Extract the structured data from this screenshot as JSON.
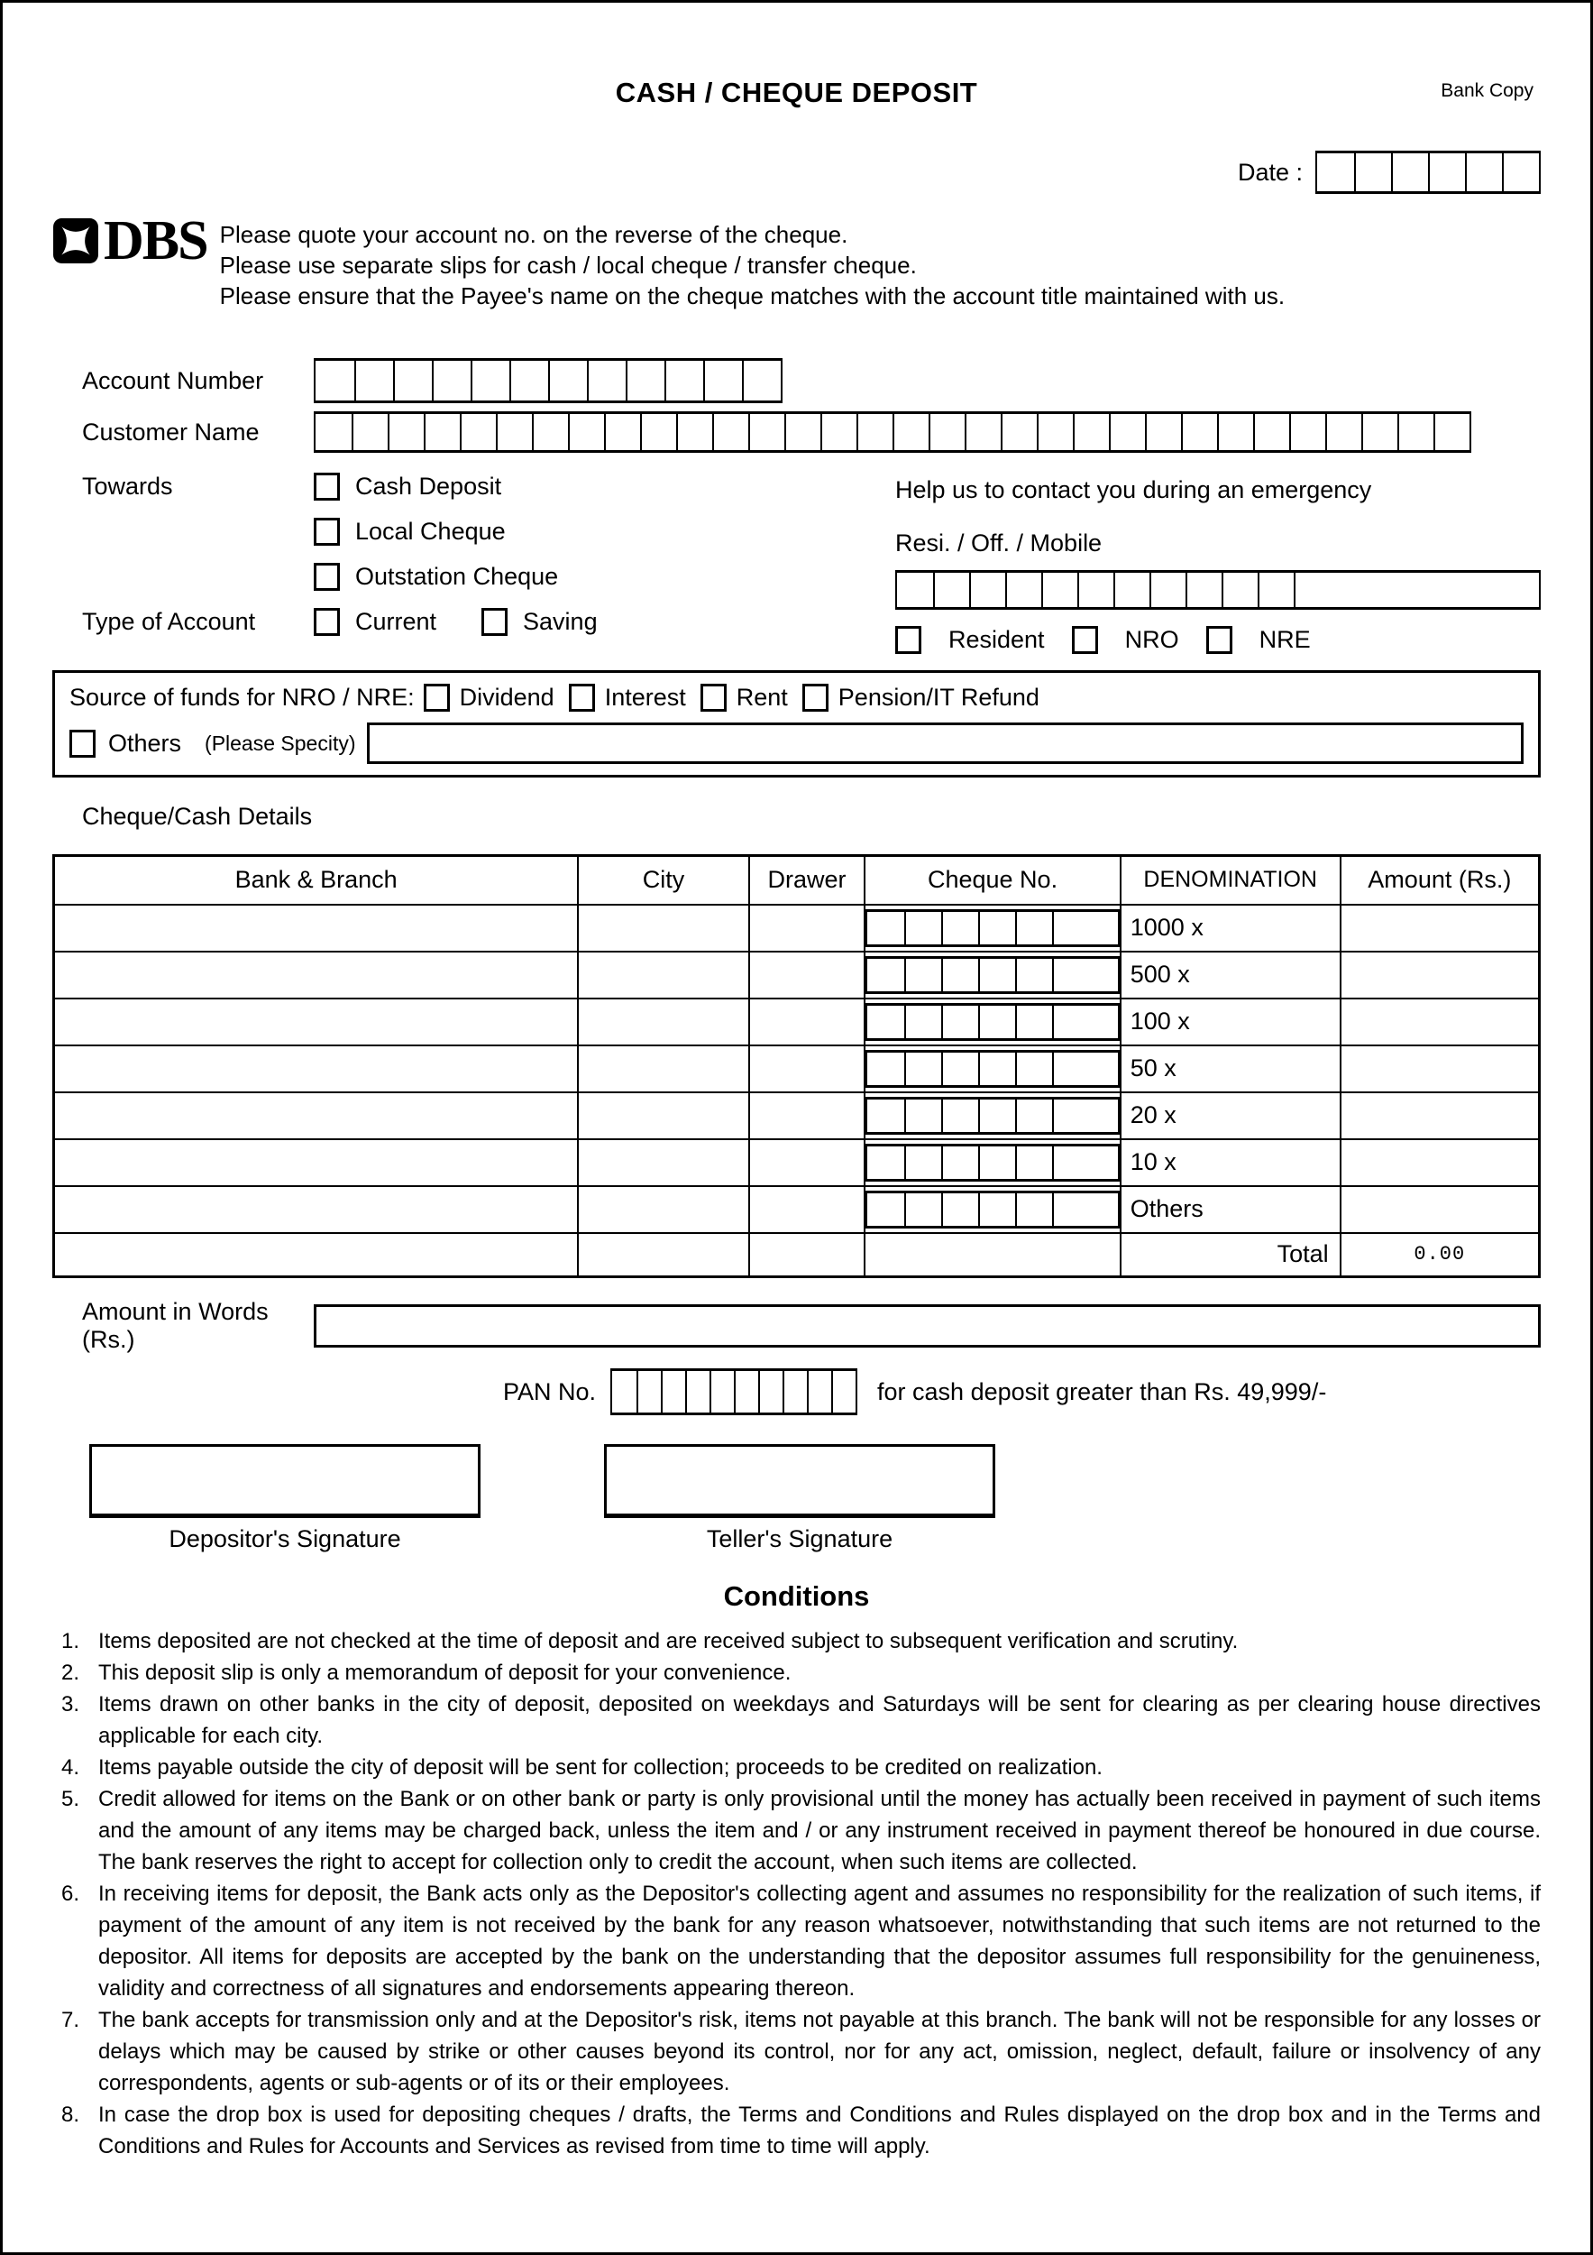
{
  "header": {
    "title": "CASH / CHEQUE DEPOSIT",
    "copy_label": "Bank Copy",
    "date_label": "Date :",
    "date_cells": 6
  },
  "logo": {
    "bank_name": "DBS"
  },
  "instructions": {
    "line1": "Please quote your account no. on the reverse of the cheque.",
    "line2": "Please use separate slips for cash / local cheque / transfer cheque.",
    "line3": "Please ensure that the Payee's name on the cheque matches with the account title maintained with us."
  },
  "account": {
    "number_label": "Account Number",
    "number_cells": 12,
    "name_label": "Customer Name",
    "name_cells": 32
  },
  "towards": {
    "label": "Towards",
    "options": [
      "Cash Deposit",
      "Local Cheque",
      "Outstation Cheque"
    ]
  },
  "account_type": {
    "label": "Type of Account",
    "options": [
      "Current",
      "Saving"
    ]
  },
  "emergency": {
    "heading": "Help us to contact you during an emergency",
    "phone_label": "Resi. / Off. / Mobile",
    "phone_cells": 12,
    "residency_options": [
      "Resident",
      "NRO",
      "NRE"
    ]
  },
  "source_of_funds": {
    "label": "Source of funds for NRO / NRE:",
    "options": [
      "Dividend",
      "Interest",
      "Rent",
      "Pension/IT Refund"
    ],
    "others_label": "Others",
    "others_hint": "(Please Specity)"
  },
  "details": {
    "heading": "Cheque/Cash Details",
    "columns": [
      "Bank & Branch",
      "City",
      "Drawer",
      "Cheque No.",
      "DENOMINATION",
      "Amount (Rs.)"
    ],
    "cheque_cells": 6,
    "denominations": [
      "1000 x",
      "500 x",
      "100 x",
      "50 x",
      "20 x",
      "10 x",
      "Others"
    ],
    "total_label": "Total",
    "total_value": "0.00"
  },
  "amount_words": {
    "label": "Amount in Words (Rs.)"
  },
  "pan": {
    "label": "PAN No.",
    "cells": 10,
    "note": "for cash deposit greater than Rs. 49,999/-"
  },
  "signatures": {
    "depositor_label": "Depositor's Signature",
    "teller_label": "Teller's Signature"
  },
  "conditions": {
    "heading": "Conditions",
    "items": [
      "Items deposited are not checked at the time of deposit and are received subject to subsequent verification and scrutiny.",
      "This deposit slip is only a memorandum of deposit for your convenience.",
      "Items drawn on other banks in the city of deposit, deposited on weekdays and Saturdays will be sent for clearing as per clearing house directives applicable for each city.",
      "Items payable outside the city of deposit will be sent for collection; proceeds to be credited on realization.",
      "Credit allowed for items on the Bank or on other bank or party is only provisional until the money has actually been received in payment of such items and the amount of any items may be charged back, unless the item and / or any instrument received in payment thereof be honoured in due course. The bank reserves the right to accept for collection only to credit the account, when such items are collected.",
      "In receiving items for deposit, the Bank acts only as the Depositor's collecting agent and assumes no responsibility for the realization of such items, if payment of the amount of any item is not received by the bank for any reason whatsoever, notwithstanding that such items are not returned to the depositor. All items for deposits are accepted by the bank on the understanding that the depositor assumes full responsibility for the genuineness, validity and correctness of all signatures and endorsements appearing thereon.",
      "The bank accepts for transmission only and at the Depositor's risk, items not payable at this branch. The bank will not be responsible for any losses or delays which may be caused by strike or other causes beyond its control, nor for any act, omission, neglect, default, failure or insolvency of any correspondents, agents or sub-agents or of its or their employees.",
      "In case the drop box is used for depositing cheques / drafts, the Terms and Conditions and Rules displayed on the drop box and in the Terms and Conditions and Rules for Accounts and Services as revised from time to time will apply."
    ]
  }
}
